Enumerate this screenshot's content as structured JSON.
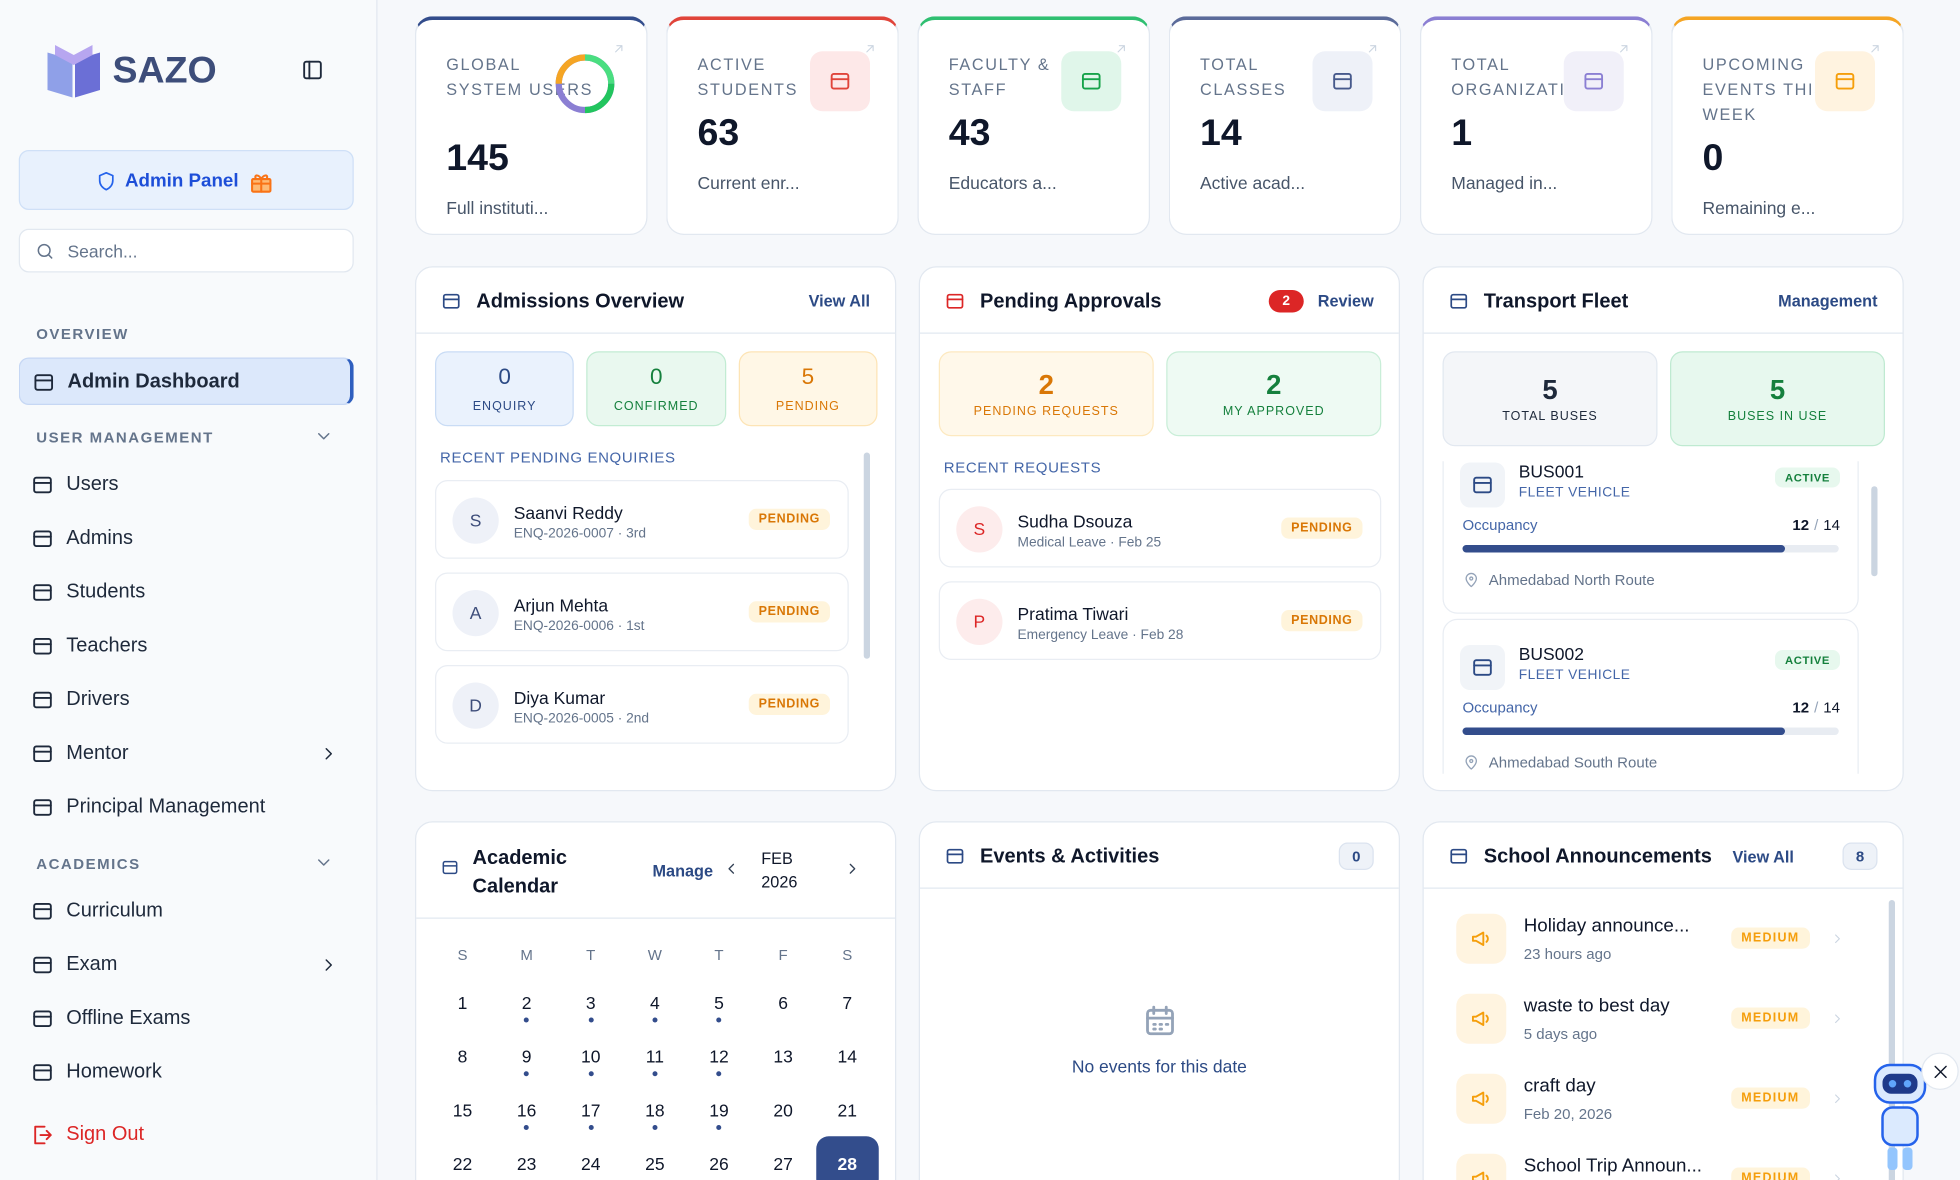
{
  "sidebar": {
    "brand": "SAZO",
    "admin_panel": "Admin Panel",
    "search": "Search...",
    "sections": [
      {
        "title": "OVERVIEW",
        "items": [
          "Admin Dashboard"
        ]
      },
      {
        "title": "USER MANAGEMENT",
        "items": [
          "Users",
          "Admins",
          "Students",
          "Teachers",
          "Drivers",
          "Mentor",
          "Principal Management"
        ]
      },
      {
        "title": "ACADEMICS",
        "items": [
          "Curriculum",
          "Exam",
          "Offline Exams",
          "Homework"
        ]
      }
    ],
    "sign_out": "Sign Out"
  },
  "stats": [
    {
      "label": "GLOBAL SYSTEM USERS",
      "value": "145",
      "sub": "Full instituti..."
    },
    {
      "label": "ACTIVE STUDENTS",
      "value": "63",
      "sub": "Current enr..."
    },
    {
      "label": "FACULTY & STAFF",
      "value": "43",
      "sub": "Educators a..."
    },
    {
      "label": "TOTAL CLASSES",
      "value": "14",
      "sub": "Active acad..."
    },
    {
      "label": "TOTAL ORGANIZATION",
      "value": "1",
      "sub": "Managed in..."
    },
    {
      "label": "UPCOMING EVENTS THIS WEEK",
      "value": "0",
      "sub": "Remaining e..."
    }
  ],
  "admissions": {
    "title": "Admissions Overview",
    "action": "View All",
    "counts": [
      {
        "value": "0",
        "label": "ENQUIRY"
      },
      {
        "value": "0",
        "label": "CONFIRMED"
      },
      {
        "value": "5",
        "label": "PENDING"
      }
    ],
    "recent_title": "RECENT PENDING ENQUIRIES",
    "items": [
      {
        "initial": "S",
        "name": "Saanvi Reddy",
        "detail": "ENQ-2026-0007 · 3rd",
        "status": "PENDING"
      },
      {
        "initial": "A",
        "name": "Arjun Mehta",
        "detail": "ENQ-2026-0006 · 1st",
        "status": "PENDING"
      },
      {
        "initial": "D",
        "name": "Diya Kumar",
        "detail": "ENQ-2026-0005 · 2nd",
        "status": "PENDING"
      }
    ]
  },
  "approvals": {
    "title": "Pending Approvals",
    "badge": "2",
    "action": "Review",
    "counts": [
      {
        "value": "2",
        "label": "PENDING REQUESTS"
      },
      {
        "value": "2",
        "label": "MY APPROVED"
      }
    ],
    "recent_title": "RECENT REQUESTS",
    "items": [
      {
        "initial": "S",
        "name": "Sudha Dsouza",
        "detail": "Medical Leave · Feb 25",
        "status": "PENDING"
      },
      {
        "initial": "P",
        "name": "Pratima Tiwari",
        "detail": "Emergency Leave · Feb 28",
        "status": "PENDING"
      }
    ]
  },
  "transport": {
    "title": "Transport Fleet",
    "action": "Management",
    "counts": [
      {
        "value": "5",
        "label": "TOTAL BUSES"
      },
      {
        "value": "5",
        "label": "BUSES IN USE"
      }
    ],
    "buses": [
      {
        "name": "BUS001",
        "type": "FLEET VEHICLE",
        "status": "ACTIVE",
        "occupancy_label": "Occupancy",
        "occupied": 12,
        "capacity": 14,
        "route": "Ahmedabad North Route"
      },
      {
        "name": "BUS002",
        "type": "FLEET VEHICLE",
        "status": "ACTIVE",
        "occupancy_label": "Occupancy",
        "occupied": 12,
        "capacity": 14,
        "route": "Ahmedabad South Route"
      }
    ]
  },
  "calendar": {
    "title": "Academic Calendar",
    "action": "Manage",
    "month": "FEB",
    "year": "2026",
    "weekdays": [
      "S",
      "M",
      "T",
      "W",
      "T",
      "F",
      "S"
    ],
    "days": [
      1,
      2,
      3,
      4,
      5,
      6,
      7,
      8,
      9,
      10,
      11,
      12,
      13,
      14,
      15,
      16,
      17,
      18,
      19,
      20,
      21,
      22,
      23,
      24,
      25,
      26,
      27,
      28
    ],
    "marked_days": [
      2,
      3,
      4,
      5,
      9,
      10,
      11,
      12,
      16,
      17,
      18,
      19
    ],
    "selected_day": 28
  },
  "events": {
    "title": "Events & Activities",
    "count": "0",
    "empty": "No events for this date"
  },
  "announcements": {
    "title": "School Announcements",
    "action": "View All",
    "count": "8",
    "items": [
      {
        "title": "Holiday announce...",
        "time": "23 hours ago",
        "priority": "MEDIUM"
      },
      {
        "title": "waste to best day",
        "time": "5 days ago",
        "priority": "MEDIUM"
      },
      {
        "title": "craft day",
        "time": "Feb 20, 2026",
        "priority": "MEDIUM"
      },
      {
        "title": "School Trip Announ...",
        "time": "",
        "priority": "MEDIUM"
      }
    ]
  }
}
